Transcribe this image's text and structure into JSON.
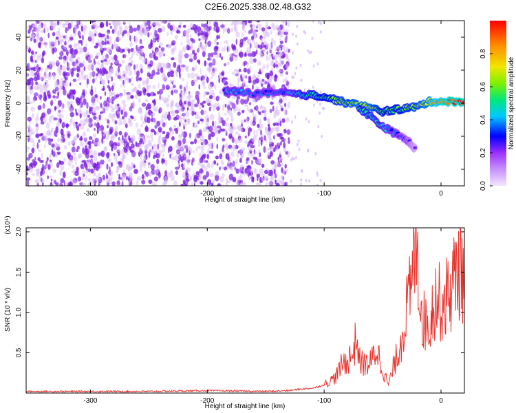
{
  "title": "C2E6.2025.338.02.48.G32",
  "colors": {
    "scatter_purple": "#7b1fe0",
    "scatter_light": "#d7b8f5",
    "snr_line": "#e8322c",
    "axis": "#000000"
  },
  "chart_data": [
    {
      "type": "heatmap",
      "title": "C2E6.2025.338.02.48.G32",
      "xlabel": "Height of straight line (km)",
      "ylabel": "Frequency (Hz)",
      "xlim": [
        -355,
        20
      ],
      "ylim": [
        -50,
        50
      ],
      "x_ticks": [
        -300,
        -200,
        -100,
        0
      ],
      "y_ticks": [
        -40,
        -20,
        0,
        20,
        40
      ],
      "colorbar": {
        "label": "Normalized spectral amplitude",
        "range": [
          0.0,
          1.0
        ],
        "ticks": [
          0.0,
          0.2,
          0.4,
          0.6,
          0.8
        ],
        "colors": [
          "#f2e6ff",
          "#9b30ff",
          "#0000ff",
          "#00c8ff",
          "#00e87a",
          "#7cf000",
          "#f0e600",
          "#ff8c00",
          "#ff0000"
        ]
      },
      "noise_region": {
        "x_range": [
          -355,
          -130
        ],
        "amplitude": 0.15
      },
      "signal_track": {
        "x": [
          -185,
          -175,
          -160,
          -145,
          -130,
          -120,
          -110,
          -100,
          -90,
          -80,
          -70,
          -60,
          -50,
          -40,
          -30,
          -20,
          -10,
          0,
          10,
          20
        ],
        "y": [
          7,
          7,
          6,
          6,
          6,
          5,
          5,
          4,
          2,
          0,
          -1,
          -3,
          -5,
          -4,
          -3,
          -2,
          1,
          1,
          1,
          1
        ],
        "amplitude": [
          0.3,
          0.35,
          0.3,
          0.3,
          0.35,
          0.45,
          0.5,
          0.55,
          0.6,
          0.65,
          0.7,
          0.7,
          0.55,
          0.55,
          0.6,
          0.65,
          0.75,
          0.9,
          0.95,
          0.95
        ]
      },
      "lower_branch": {
        "x": [
          -70,
          -60,
          -50,
          -40,
          -30,
          -25,
          -22
        ],
        "y": [
          -3,
          -8,
          -14,
          -18,
          -22,
          -25,
          -28
        ],
        "amplitude": [
          0.5,
          0.45,
          0.4,
          0.3,
          0.2,
          0.15,
          0.1
        ]
      }
    },
    {
      "type": "line",
      "xlabel": "Height of straight line (km)",
      "ylabel": "SNR (10 * v/v)",
      "y_multiplier": "(x10⁴)",
      "xlim": [
        -355,
        20
      ],
      "ylim": [
        0,
        2.05
      ],
      "x_ticks": [
        -300,
        -200,
        -100,
        0
      ],
      "y_ticks": [
        0.5,
        1.0,
        1.5,
        2.0
      ],
      "series": [
        {
          "color": "#e8322c",
          "x": [
            -355,
            -300,
            -250,
            -200,
            -150,
            -130,
            -120,
            -110,
            -100,
            -95,
            -90,
            -85,
            -80,
            -75,
            -72,
            -70,
            -65,
            -60,
            -55,
            -50,
            -45,
            -40,
            -35,
            -30,
            -25,
            -21,
            -18,
            -15,
            -10,
            -5,
            0,
            5,
            10,
            15,
            20
          ],
          "y": [
            0.02,
            0.02,
            0.02,
            0.03,
            0.02,
            0.03,
            0.05,
            0.06,
            0.1,
            0.15,
            0.2,
            0.35,
            0.4,
            0.5,
            0.73,
            0.4,
            0.35,
            0.38,
            0.55,
            0.3,
            0.1,
            0.35,
            0.6,
            1.0,
            1.3,
            2.05,
            1.2,
            0.9,
            0.85,
            1.2,
            1.1,
            1.2,
            1.35,
            1.6,
            1.5
          ]
        }
      ]
    }
  ]
}
